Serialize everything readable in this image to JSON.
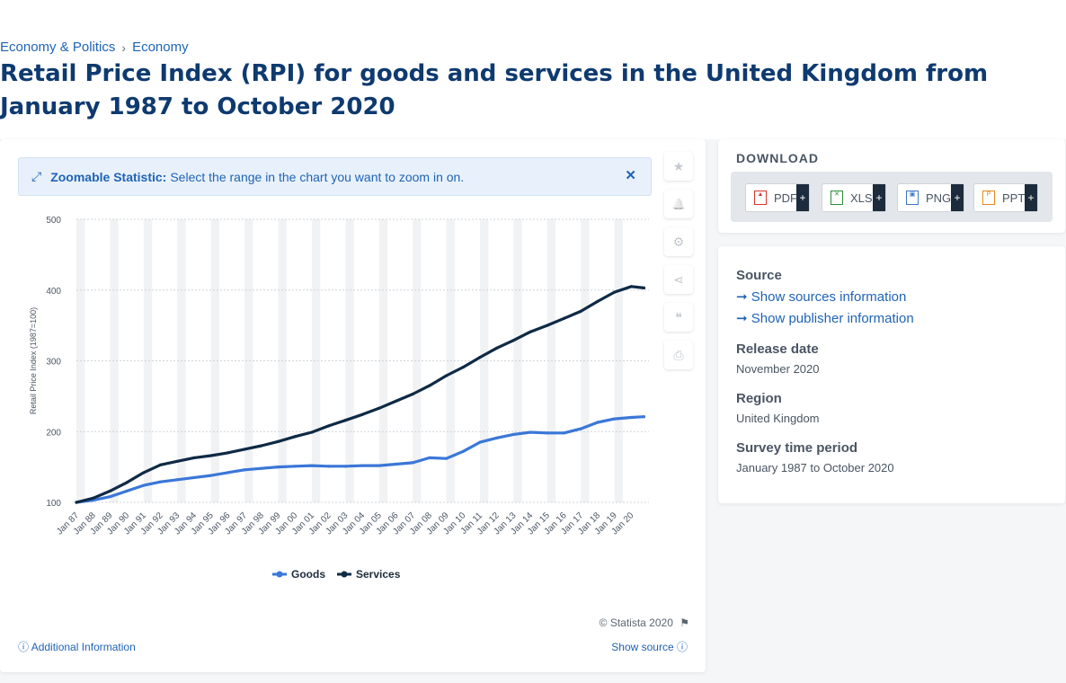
{
  "breadcrumb": {
    "items": [
      "Economy & Politics",
      "Economy"
    ],
    "separator": "›"
  },
  "page": {
    "title": "Retail Price Index (RPI) for goods and services in the United Kingdom from January 1987 to October 2020"
  },
  "zoom_banner": {
    "label": "Zoomable Statistic:",
    "text": "Select the range in the chart you want to zoom in on.",
    "close": "✕"
  },
  "tools": [
    {
      "icon": "star-icon",
      "glyph": "★"
    },
    {
      "icon": "bell-icon",
      "glyph": "🔔"
    },
    {
      "icon": "gear-icon",
      "glyph": "⚙"
    },
    {
      "icon": "share-icon",
      "glyph": "⋖"
    },
    {
      "icon": "quote-icon",
      "glyph": "❝"
    },
    {
      "icon": "print-icon",
      "glyph": "⎙"
    }
  ],
  "footer": {
    "copyright": "© Statista 2020",
    "additional_info": "Additional Information",
    "show_source": "Show source"
  },
  "download": {
    "title": "DOWNLOAD",
    "buttons": [
      {
        "label": "PDF",
        "icon": "pdf-file-icon",
        "color": "#d9342b"
      },
      {
        "label": "XLS",
        "icon": "xls-file-icon",
        "color": "#2e8b3a"
      },
      {
        "label": "PNG",
        "icon": "png-file-icon",
        "color": "#3a77c2"
      },
      {
        "label": "PPT",
        "icon": "ppt-file-icon",
        "color": "#e08a1e"
      }
    ],
    "plus": "+"
  },
  "info": {
    "source_label": "Source",
    "show_sources": "Show sources information",
    "show_publisher": "Show publisher information",
    "release_label": "Release date",
    "release_value": "November 2020",
    "region_label": "Region",
    "region_value": "United Kingdom",
    "survey_label": "Survey time period",
    "survey_value": "January 1987 to October 2020"
  },
  "chart_data": {
    "type": "line",
    "ylabel": "Retail Price Index (1987=100)",
    "xlabel": "",
    "ylim": [
      100,
      500
    ],
    "yticks": [
      100,
      200,
      300,
      400,
      500
    ],
    "xticks": [
      "Jan 87",
      "Jan 88",
      "Jan 89",
      "Jan 90",
      "Jan 91",
      "Jan 92",
      "Jan 93",
      "Jan 94",
      "Jan 95",
      "Jan 96",
      "Jan 97",
      "Jan 98",
      "Jan 99",
      "Jan 00",
      "Jan 01",
      "Jan 02",
      "Jan 03",
      "Jan 04",
      "Jan 05",
      "Jan 06",
      "Jan 07",
      "Jan 08",
      "Jan 09",
      "Jan 10",
      "Jan 11",
      "Jan 12",
      "Jan 13",
      "Jan 14",
      "Jan 15",
      "Jan 16",
      "Jan 17",
      "Jan 18",
      "Jan 19",
      "Jan 20"
    ],
    "x": [
      1987,
      1988,
      1989,
      1990,
      1991,
      1992,
      1993,
      1994,
      1995,
      1996,
      1997,
      1998,
      1999,
      2000,
      2001,
      2002,
      2003,
      2004,
      2005,
      2006,
      2007,
      2008,
      2009,
      2010,
      2011,
      2012,
      2013,
      2014,
      2015,
      2016,
      2017,
      2018,
      2019,
      2020,
      2020.75
    ],
    "legend": "bottom-center",
    "grid": true,
    "series": [
      {
        "name": "Goods",
        "color": "#3a77d8",
        "values": [
          100,
          103,
          108,
          116,
          124,
          129,
          132,
          135,
          138,
          142,
          146,
          148,
          150,
          151,
          152,
          151,
          151,
          152,
          152,
          154,
          156,
          163,
          162,
          172,
          185,
          191,
          196,
          199,
          198,
          198,
          204,
          213,
          218,
          220,
          221
        ]
      },
      {
        "name": "Services",
        "color": "#0e2a45",
        "values": [
          100,
          106,
          116,
          128,
          142,
          153,
          158,
          163,
          166,
          170,
          175,
          180,
          186,
          193,
          199,
          208,
          216,
          224,
          233,
          243,
          253,
          265,
          279,
          291,
          305,
          318,
          329,
          341,
          350,
          360,
          370,
          384,
          397,
          405,
          403
        ]
      }
    ]
  }
}
